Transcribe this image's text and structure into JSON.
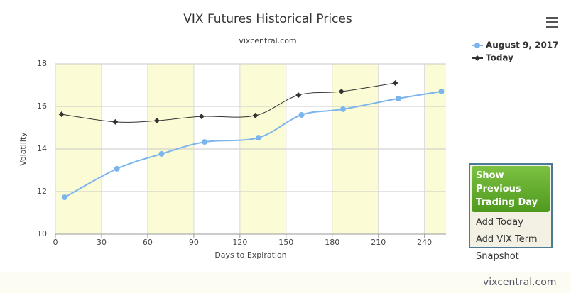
{
  "chart_data": {
    "type": "line",
    "title": "VIX Futures Historical Prices",
    "subtitle": "vixcentral.com",
    "x_label": "Days to Expiration",
    "y_label": "Volatility",
    "xlim": [
      0,
      254
    ],
    "xticks": [
      0,
      30,
      60,
      90,
      120,
      150,
      180,
      210,
      240
    ],
    "ylim": [
      10,
      18
    ],
    "yticks": [
      10,
      12,
      14,
      16,
      18
    ],
    "grid": true,
    "bands": {
      "color": "#fbfbd6",
      "ranges": [
        [
          0,
          30
        ],
        [
          60,
          90
        ],
        [
          120,
          150
        ],
        [
          180,
          210
        ],
        [
          240,
          254
        ]
      ]
    },
    "series": [
      {
        "name": "August 9, 2017",
        "color": "#7cb5ec",
        "marker": "circle",
        "x": [
          6,
          40,
          69,
          97,
          132,
          160,
          187,
          223,
          251
        ],
        "values": [
          11.73,
          13.07,
          13.77,
          14.33,
          14.53,
          15.6,
          15.87,
          16.37,
          16.7
        ]
      },
      {
        "name": "Today",
        "color": "#333333",
        "marker": "diamond",
        "x": [
          4,
          39,
          66,
          95,
          130,
          158,
          186,
          221
        ],
        "values": [
          15.63,
          15.27,
          15.33,
          15.53,
          15.57,
          16.53,
          16.7,
          17.1
        ]
      }
    ]
  },
  "menu": {
    "button": "Show Previous Trading Day",
    "items": [
      "Add Today",
      "Add VIX Term",
      "Snapshot"
    ]
  },
  "footer": "vixcentral.com"
}
